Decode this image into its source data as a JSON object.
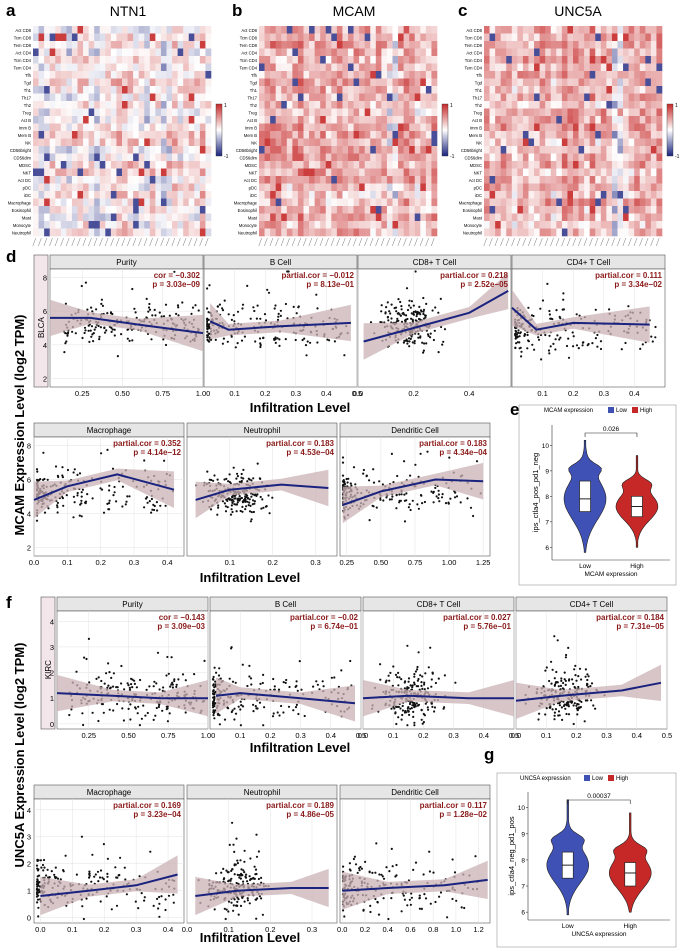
{
  "chart_data": {
    "heatmaps": [
      {
        "letter": "a",
        "title": "NTN1"
      },
      {
        "letter": "b",
        "title": "MCAM"
      },
      {
        "letter": "c",
        "title": "UNC5A"
      }
    ],
    "heatmap_rows": [
      "Act CD8",
      "Tcm CD8",
      "Tem CD8",
      "Act CD4",
      "Tcm CD4",
      "Tem CD4",
      "Tfh",
      "Tgd",
      "Th1",
      "Th17",
      "Th2",
      "Treg",
      "Act B",
      "Imm B",
      "Mem B",
      "NK",
      "CD56bright",
      "CD56dim",
      "MDSC",
      "NKT",
      "Act DC",
      "pDC",
      "iDC",
      "Macrophage",
      "Eosinophil",
      "Mast",
      "Monocyte",
      "Neutrophil"
    ],
    "heatmap_scale": {
      "max_label": "1",
      "min_label": "-1",
      "high_color": "#c62828",
      "mid_color": "#ffffff",
      "low_color": "#1a237e"
    },
    "timer_blocks": [
      {
        "panel": "d",
        "ylabel": "MCAM Expression Level (log2 TPM)",
        "xlabel": "Infiltration Level",
        "cancer": "BLCA",
        "rows": [
          [
            {
              "name": "Purity",
              "stat1": "cor = −0.302",
              "stat2": "p = 3.03e−09",
              "xmin": 0.05,
              "xmax": 1.0,
              "ymin": 1.5,
              "ymax": 8.5,
              "xticks": [
                "0.25",
                "0.50",
                "0.75",
                "1.00"
              ],
              "xtickv": [
                0.25,
                0.5,
                0.75,
                1.0
              ],
              "yticks": [
                "2",
                "4",
                "6",
                "8"
              ],
              "ytickv": [
                2,
                4,
                6,
                8
              ],
              "fit": [
                [
                  0.05,
                  5.6
                ],
                [
                  0.3,
                  5.6
                ],
                [
                  0.6,
                  5.2
                ],
                [
                  1.0,
                  4.7
                ]
              ],
              "xdist": "unif",
              "ycenter": 5.2,
              "yspread": 1.3,
              "seed": 11
            },
            {
              "name": "B Cell",
              "stat1": "partial.cor = −0.012",
              "stat2": "p = 8.13e−01",
              "xmin": 0.0,
              "xmax": 0.5,
              "ymin": 1.5,
              "ymax": 8.5,
              "xticks": [
                "0.1",
                "0.2",
                "0.3",
                "0.4",
                "0.5"
              ],
              "xtickv": [
                0.1,
                0.2,
                0.3,
                0.4,
                0.5
              ],
              "yticks": [],
              "ytickv": [],
              "fit": [
                [
                  0.02,
                  5.4
                ],
                [
                  0.08,
                  4.9
                ],
                [
                  0.25,
                  5.1
                ],
                [
                  0.48,
                  5.3
                ]
              ],
              "xdist": "skew",
              "ycenter": 5.0,
              "yspread": 1.3,
              "seed": 12
            },
            {
              "name": "CD8+ T Cell",
              "stat1": "partial.cor = 0.218",
              "stat2": "p = 2.52e−05",
              "xmin": 0.0,
              "xmax": 0.55,
              "ymin": 1.5,
              "ymax": 8.5,
              "xticks": [
                "0.0",
                "0.2",
                "0.4"
              ],
              "xtickv": [
                0.0,
                0.2,
                0.4
              ],
              "yticks": [],
              "ytickv": [],
              "fit": [
                [
                  0.02,
                  4.2
                ],
                [
                  0.2,
                  5.0
                ],
                [
                  0.4,
                  5.9
                ],
                [
                  0.54,
                  7.2
                ]
              ],
              "xdist": "mid",
              "ycenter": 5.2,
              "yspread": 1.3,
              "seed": 13
            },
            {
              "name": "CD4+ T Cell",
              "stat1": "partial.cor = 0.111",
              "stat2": "p = 3.34e−02",
              "xmin": 0.0,
              "xmax": 0.5,
              "ymin": 1.5,
              "ymax": 8.5,
              "xticks": [
                "0.1",
                "0.2",
                "0.3",
                "0.4"
              ],
              "xtickv": [
                0.1,
                0.2,
                0.3,
                0.4
              ],
              "yticks": [],
              "ytickv": [],
              "fit": [
                [
                  0.0,
                  6.2
                ],
                [
                  0.08,
                  4.9
                ],
                [
                  0.2,
                  5.3
                ],
                [
                  0.45,
                  5.2
                ]
              ],
              "xdist": "skew",
              "ycenter": 5.0,
              "yspread": 1.3,
              "seed": 14
            }
          ],
          [
            {
              "name": "Macrophage",
              "stat1": "partial.cor = 0.352",
              "stat2": "p = 4.14e−12",
              "xmin": 0.0,
              "xmax": 0.45,
              "ymin": 1.5,
              "ymax": 8.5,
              "xticks": [
                "0.0",
                "0.1",
                "0.2",
                "0.3",
                "0.4"
              ],
              "xtickv": [
                0.0,
                0.1,
                0.2,
                0.3,
                0.4
              ],
              "yticks": [
                "2",
                "4",
                "6",
                "8"
              ],
              "ytickv": [
                2,
                4,
                6,
                8
              ],
              "fit": [
                [
                  0.0,
                  4.8
                ],
                [
                  0.1,
                  5.6
                ],
                [
                  0.25,
                  6.3
                ],
                [
                  0.42,
                  5.4
                ]
              ],
              "xdist": "skew",
              "ycenter": 5.2,
              "yspread": 1.3,
              "seed": 21
            },
            {
              "name": "Neutrophil",
              "stat1": "partial.cor = 0.183",
              "stat2": "p = 4.53e−04",
              "xmin": 0.0,
              "xmax": 0.35,
              "ymin": 1.5,
              "ymax": 8.5,
              "xticks": [
                "0.1",
                "0.2",
                "0.3"
              ],
              "xtickv": [
                0.1,
                0.2,
                0.3
              ],
              "yticks": [],
              "ytickv": [],
              "fit": [
                [
                  0.02,
                  4.8
                ],
                [
                  0.1,
                  5.4
                ],
                [
                  0.22,
                  5.7
                ],
                [
                  0.33,
                  5.5
                ]
              ],
              "xdist": "mid",
              "ycenter": 5.2,
              "yspread": 1.3,
              "seed": 22
            },
            {
              "name": "Dendritic Cell",
              "stat1": "partial.cor = 0.183",
              "stat2": "p = 4.34e−04",
              "xmin": 0.2,
              "xmax": 1.3,
              "ymin": 1.5,
              "ymax": 8.5,
              "xticks": [
                "0.25",
                "0.50",
                "0.75",
                "1.00",
                "1.25"
              ],
              "xtickv": [
                0.25,
                0.5,
                0.75,
                1.0,
                1.25
              ],
              "yticks": [],
              "ytickv": [],
              "fit": [
                [
                  0.22,
                  4.5
                ],
                [
                  0.5,
                  5.3
                ],
                [
                  0.9,
                  6.0
                ],
                [
                  1.25,
                  5.9
                ]
              ],
              "xdist": "skew",
              "ycenter": 5.2,
              "yspread": 1.3,
              "seed": 23
            }
          ]
        ]
      },
      {
        "panel": "f",
        "ylabel": "UNC5A Expression Level (log2 TPM)",
        "xlabel": "Infiltration Level",
        "cancer": "KIRC",
        "rows": [
          [
            {
              "name": "Purity",
              "stat1": "cor = −0.143",
              "stat2": "p = 3.09e−03",
              "xmin": 0.05,
              "xmax": 1.0,
              "ymin": -0.2,
              "ymax": 4.4,
              "xticks": [
                "0.25",
                "0.50",
                "0.75",
                "1.00"
              ],
              "xtickv": [
                0.25,
                0.5,
                0.75,
                1.0
              ],
              "yticks": [
                "0",
                "1",
                "2",
                "3",
                "4"
              ],
              "ytickv": [
                0,
                1,
                2,
                3,
                4
              ],
              "fit": [
                [
                  0.05,
                  1.2
                ],
                [
                  0.4,
                  1.1
                ],
                [
                  0.7,
                  1.0
                ],
                [
                  1.0,
                  1.0
                ]
              ],
              "xdist": "unif",
              "ycenter": 1.1,
              "yspread": 0.9,
              "seed": 31
            },
            {
              "name": "B Cell",
              "stat1": "partial.cor = −0.02",
              "stat2": "p = 6.74e−01",
              "xmin": 0.0,
              "xmax": 0.5,
              "ymin": -0.2,
              "ymax": 4.4,
              "xticks": [
                "0.1",
                "0.2",
                "0.3",
                "0.4",
                "0.5"
              ],
              "xtickv": [
                0.1,
                0.2,
                0.3,
                0.4,
                0.5
              ],
              "yticks": [],
              "ytickv": [],
              "fit": [
                [
                  0.02,
                  1.1
                ],
                [
                  0.1,
                  1.2
                ],
                [
                  0.3,
                  1.0
                ],
                [
                  0.48,
                  0.8
                ]
              ],
              "xdist": "skew",
              "ycenter": 1.1,
              "yspread": 0.9,
              "seed": 32
            },
            {
              "name": "CD8+ T Cell",
              "stat1": "partial.cor = 0.027",
              "stat2": "p = 5.76e−01",
              "xmin": 0.0,
              "xmax": 0.5,
              "ymin": -0.2,
              "ymax": 4.4,
              "xticks": [
                "0.0",
                "0.1",
                "0.2",
                "0.3",
                "0.4",
                "0.5"
              ],
              "xtickv": [
                0.0,
                0.1,
                0.2,
                0.3,
                0.4,
                0.5
              ],
              "yticks": [],
              "ytickv": [],
              "fit": [
                [
                  0.0,
                  1.0
                ],
                [
                  0.15,
                  1.1
                ],
                [
                  0.35,
                  1.0
                ],
                [
                  0.5,
                  1.0
                ]
              ],
              "xdist": "mid",
              "ycenter": 1.1,
              "yspread": 0.9,
              "seed": 33
            },
            {
              "name": "CD4+ T Cell",
              "stat1": "partial.cor = 0.184",
              "stat2": "p = 7.31e−05",
              "xmin": 0.0,
              "xmax": 0.5,
              "ymin": -0.2,
              "ymax": 4.4,
              "xticks": [
                "0.0",
                "0.1",
                "0.2",
                "0.3",
                "0.4",
                "0.5"
              ],
              "xtickv": [
                0.0,
                0.1,
                0.2,
                0.3,
                0.4,
                0.5
              ],
              "yticks": [],
              "ytickv": [],
              "fit": [
                [
                  0.0,
                  0.9
                ],
                [
                  0.15,
                  1.1
                ],
                [
                  0.35,
                  1.3
                ],
                [
                  0.48,
                  1.6
                ]
              ],
              "xdist": "mid",
              "ycenter": 1.1,
              "yspread": 0.9,
              "seed": 34
            }
          ],
          [
            {
              "name": "Macrophage",
              "stat1": "partial.cor = 0.169",
              "stat2": "p = 3.23e−04",
              "xmin": -0.02,
              "xmax": 0.45,
              "ymin": -0.2,
              "ymax": 4.4,
              "xticks": [
                "0.0",
                "0.1",
                "0.2",
                "0.3",
                "0.4"
              ],
              "xtickv": [
                0.0,
                0.1,
                0.2,
                0.3,
                0.4
              ],
              "yticks": [
                "0",
                "1",
                "2",
                "3",
                "4"
              ],
              "ytickv": [
                0,
                1,
                2,
                3,
                4
              ],
              "fit": [
                [
                  0.0,
                  0.8
                ],
                [
                  0.15,
                  1.0
                ],
                [
                  0.3,
                  1.2
                ],
                [
                  0.43,
                  1.6
                ]
              ],
              "xdist": "skew",
              "ycenter": 1.1,
              "yspread": 0.9,
              "seed": 41
            },
            {
              "name": "Neutrophil",
              "stat1": "partial.cor = 0.189",
              "stat2": "p = 4.86e−05",
              "xmin": 0.0,
              "xmax": 0.36,
              "ymin": -0.2,
              "ymax": 4.4,
              "xticks": [
                "0.0",
                "0.1",
                "0.2",
                "0.3"
              ],
              "xtickv": [
                0.0,
                0.1,
                0.2,
                0.3
              ],
              "yticks": [],
              "ytickv": [],
              "fit": [
                [
                  0.02,
                  0.8
                ],
                [
                  0.12,
                  1.0
                ],
                [
                  0.25,
                  1.1
                ],
                [
                  0.34,
                  1.1
                ]
              ],
              "xdist": "mid",
              "ycenter": 1.1,
              "yspread": 0.9,
              "seed": 42
            },
            {
              "name": "Dendritic Cell",
              "stat1": "partial.cor = 0.117",
              "stat2": "p = 1.28e−02",
              "xmin": -0.02,
              "xmax": 1.3,
              "ymin": -0.2,
              "ymax": 4.4,
              "xticks": [
                "0.0",
                "0.2",
                "0.4",
                "0.6",
                "0.8",
                "1.0",
                "1.2"
              ],
              "xtickv": [
                0.0,
                0.2,
                0.4,
                0.6,
                0.8,
                1.0,
                1.2
              ],
              "yticks": [],
              "ytickv": [],
              "fit": [
                [
                  0.0,
                  1.0
                ],
                [
                  0.4,
                  1.1
                ],
                [
                  0.9,
                  1.2
                ],
                [
                  1.28,
                  1.4
                ]
              ],
              "xdist": "skew",
              "ycenter": 1.1,
              "yspread": 0.9,
              "seed": 43
            }
          ]
        ]
      }
    ],
    "violins": [
      {
        "panel": "e",
        "legend_title": "MCAM expression",
        "legend_low": "Low",
        "legend_high": "High",
        "ylabel": "ips_ctla4_pos_pd1_neg",
        "xlabel": "MCAM expression",
        "categories": [
          "Low",
          "High"
        ],
        "pvalue": "0.026",
        "ylim": [
          5.5,
          10.8
        ],
        "yticks": [
          "6",
          "7",
          "8",
          "9",
          "10"
        ],
        "ytickv": [
          6,
          7,
          8,
          9,
          10
        ],
        "groups": [
          {
            "median": 7.9,
            "q1": 7.4,
            "q3": 8.6,
            "min": 5.8,
            "max": 10.2
          },
          {
            "median": 7.6,
            "q1": 7.2,
            "q3": 8.0,
            "min": 6.0,
            "max": 9.6
          }
        ],
        "low_color": "#3f51b5",
        "high_color": "#c62828"
      },
      {
        "panel": "g",
        "legend_title": "UNC5A expression",
        "legend_low": "Low",
        "legend_high": "High",
        "ylabel": "ips_ctla4_neg_pd1_pos",
        "xlabel": "UNC5A expression",
        "categories": [
          "Low",
          "High"
        ],
        "pvalue": "0.00037",
        "ylim": [
          5.7,
          10.6
        ],
        "yticks": [
          "6",
          "7",
          "8",
          "9",
          "10"
        ],
        "ytickv": [
          6,
          7,
          8,
          9,
          10
        ],
        "groups": [
          {
            "median": 7.8,
            "q1": 7.3,
            "q3": 8.3,
            "min": 5.9,
            "max": 10.3
          },
          {
            "median": 7.5,
            "q1": 7.0,
            "q3": 7.9,
            "min": 6.0,
            "max": 9.8
          }
        ],
        "low_color": "#3f51b5",
        "high_color": "#c62828"
      }
    ],
    "colors": {
      "fit_line": "#1a237e",
      "ci_band": "#c9b1b6",
      "point": "#111111",
      "strip_bg": "#e6e6e6",
      "sidebar": "#f3e6ea"
    }
  }
}
